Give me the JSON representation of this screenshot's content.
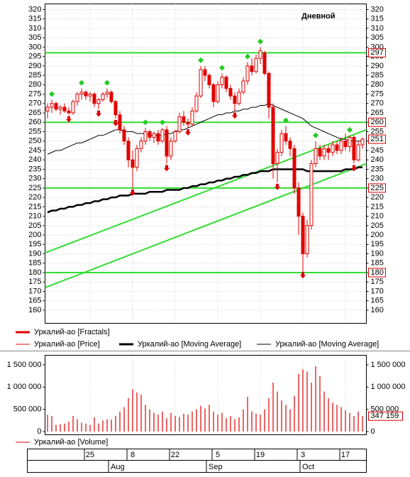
{
  "chart_data": [
    {
      "type": "candlestick",
      "title": "Дневной",
      "ylim": [
        153,
        323
      ],
      "yticks": [
        160,
        165,
        170,
        175,
        180,
        185,
        190,
        195,
        200,
        205,
        210,
        215,
        220,
        225,
        230,
        235,
        240,
        245,
        250,
        255,
        260,
        265,
        270,
        275,
        280,
        285,
        290,
        295,
        300,
        305,
        310,
        315,
        320
      ],
      "grid": true,
      "levels": [
        297,
        260,
        225,
        180
      ],
      "level_color": "#33dd33",
      "channel": [
        [
          190.5,
          256
        ],
        [
          172,
          238
        ]
      ],
      "channel_color": "#33dd33",
      "series": [
        {
          "name": "Уркалий-ао [Fractals]",
          "color": "#e00000",
          "up_color": "#22cc22",
          "up": [
            null,
            275,
            null,
            null,
            null,
            null,
            null,
            null,
            281,
            null,
            null,
            null,
            null,
            null,
            281,
            null,
            null,
            null,
            null,
            null,
            null,
            null,
            null,
            260,
            null,
            null,
            null,
            260,
            null,
            null,
            null,
            null,
            null,
            null,
            null,
            null,
            293,
            null,
            null,
            null,
            null,
            289,
            null,
            null,
            null,
            null,
            null,
            295,
            null,
            null,
            303,
            null,
            null,
            null,
            null,
            null,
            261,
            null,
            null,
            null,
            null,
            null,
            null,
            253,
            null,
            null,
            null,
            null,
            null,
            null,
            null,
            256,
            null,
            null,
            null
          ],
          "down": [
            null,
            null,
            null,
            null,
            null,
            261,
            null,
            null,
            null,
            null,
            null,
            null,
            264,
            null,
            null,
            null,
            259,
            null,
            null,
            null,
            222,
            null,
            null,
            null,
            null,
            null,
            null,
            null,
            235,
            null,
            null,
            null,
            null,
            254,
            null,
            null,
            null,
            null,
            null,
            null,
            null,
            null,
            null,
            null,
            263,
            null,
            null,
            null,
            null,
            null,
            null,
            null,
            null,
            null,
            225,
            null,
            null,
            null,
            null,
            null,
            178,
            null,
            null,
            null,
            null,
            null,
            null,
            null,
            null,
            null,
            null,
            null,
            235,
            null,
            null
          ]
        },
        {
          "name": "Уркалий-ао [Price]",
          "color": "#e00000",
          "open": [
            266,
            268,
            270,
            267,
            268,
            266,
            265,
            271,
            275,
            276,
            274,
            275,
            270,
            272,
            275,
            276,
            271,
            264,
            256,
            250,
            240,
            236,
            246,
            250,
            255,
            252,
            254,
            250,
            256,
            242,
            250,
            255,
            263,
            260,
            259,
            266,
            274,
            288,
            285,
            280,
            271,
            280,
            284,
            278,
            274,
            270,
            276,
            282,
            290,
            287,
            294,
            297,
            286,
            268,
            238,
            244,
            254,
            250,
            246,
            225,
            210,
            190,
            205,
            238,
            246,
            242,
            246,
            244,
            248,
            245,
            250,
            247,
            252,
            240,
            248
          ],
          "high": [
            270,
            272,
            271,
            269,
            270,
            268,
            272,
            276,
            278,
            277,
            276,
            276,
            273,
            276,
            278,
            277,
            272,
            266,
            258,
            252,
            245,
            248,
            252,
            257,
            256,
            255,
            256,
            257,
            258,
            252,
            256,
            265,
            266,
            262,
            268,
            276,
            290,
            290,
            286,
            281,
            282,
            286,
            285,
            280,
            276,
            278,
            284,
            292,
            294,
            296,
            300,
            298,
            287,
            270,
            246,
            256,
            258,
            252,
            248,
            228,
            212,
            208,
            240,
            250,
            248,
            248,
            248,
            250,
            250,
            252,
            254,
            253,
            253,
            250,
            252
          ],
          "low": [
            262,
            265,
            266,
            264,
            265,
            264,
            264,
            269,
            272,
            272,
            271,
            268,
            267,
            271,
            273,
            270,
            262,
            254,
            248,
            236,
            225,
            234,
            244,
            248,
            250,
            249,
            248,
            249,
            238,
            240,
            249,
            254,
            258,
            257,
            258,
            265,
            273,
            282,
            278,
            268,
            270,
            278,
            276,
            272,
            266,
            269,
            275,
            280,
            285,
            286,
            291,
            285,
            262,
            230,
            228,
            242,
            248,
            242,
            222,
            200,
            180,
            188,
            203,
            236,
            240,
            240,
            240,
            242,
            243,
            243,
            245,
            244,
            238,
            239,
            246
          ],
          "close": [
            268,
            270,
            267,
            268,
            266,
            265,
            271,
            275,
            276,
            274,
            275,
            270,
            272,
            275,
            276,
            271,
            264,
            256,
            250,
            240,
            236,
            246,
            250,
            255,
            252,
            254,
            250,
            256,
            242,
            250,
            255,
            263,
            260,
            259,
            266,
            274,
            288,
            285,
            280,
            271,
            280,
            284,
            278,
            274,
            270,
            276,
            282,
            290,
            287,
            294,
            298,
            286,
            268,
            238,
            244,
            254,
            250,
            246,
            225,
            210,
            190,
            205,
            238,
            246,
            242,
            246,
            244,
            248,
            245,
            250,
            247,
            252,
            240,
            248,
            251
          ]
        },
        {
          "name": "Уркалий-ао [Moving Average]",
          "color": "#000000",
          "width": 2.5,
          "values": [
            212,
            213,
            213,
            214,
            214,
            215,
            215,
            216,
            216,
            217,
            217,
            218,
            218,
            219,
            219,
            220,
            220,
            221,
            221,
            221,
            222,
            222,
            222,
            222,
            223,
            223,
            223,
            223,
            224,
            224,
            224,
            224,
            225,
            225,
            226,
            226,
            227,
            227,
            228,
            228,
            229,
            229,
            230,
            230,
            231,
            231,
            232,
            232,
            233,
            233,
            234,
            234,
            234,
            235,
            235,
            235,
            235,
            235,
            235,
            235,
            235,
            234,
            234,
            234,
            234,
            234,
            234,
            234,
            234,
            234,
            235,
            235,
            235,
            236,
            236
          ]
        },
        {
          "name": "Уркалий-ао [Moving Average]",
          "color": "#000000",
          "width": 1,
          "values": [
            243,
            244,
            245,
            245,
            246,
            247,
            248,
            249,
            249,
            250,
            251,
            252,
            253,
            253,
            254,
            255,
            256,
            256,
            255,
            255,
            255,
            254,
            254,
            254,
            253,
            253,
            253,
            253,
            254,
            254,
            255,
            256,
            256,
            257,
            258,
            259,
            260,
            261,
            262,
            263,
            264,
            264,
            265,
            265,
            266,
            266,
            267,
            267,
            268,
            268,
            269,
            269,
            270,
            269,
            268,
            267,
            266,
            265,
            264,
            263,
            262,
            260,
            258,
            257,
            256,
            255,
            254,
            253,
            252,
            251,
            251,
            250,
            250,
            250,
            250
          ]
        }
      ]
    },
    {
      "type": "bar",
      "ylim": [
        0,
        1675000
      ],
      "yticks": [
        0,
        {
          "value": 500000,
          "label": "500 000"
        },
        {
          "value": 1000000,
          "label": "1 000 000"
        },
        {
          "value": 1500000,
          "label": "1 500 000"
        }
      ],
      "categories": [
        null,
        null,
        null,
        null,
        null,
        null,
        null,
        null,
        null,
        null,
        "25",
        null,
        null,
        null,
        null,
        null,
        null,
        null,
        null,
        null,
        "8",
        null,
        null,
        null,
        null,
        null,
        null,
        null,
        null,
        null,
        "22",
        null,
        null,
        null,
        null,
        null,
        null,
        null,
        null,
        null,
        "5",
        null,
        null,
        null,
        null,
        null,
        null,
        null,
        null,
        null,
        "19",
        null,
        null,
        null,
        null,
        null,
        null,
        null,
        null,
        null,
        "3",
        null,
        null,
        null,
        null,
        null,
        null,
        null,
        null,
        null,
        "17",
        null,
        null,
        null,
        null
      ],
      "months": [
        null,
        null,
        null,
        null,
        null,
        null,
        null,
        null,
        null,
        null,
        null,
        null,
        null,
        null,
        null,
        "Aug",
        null,
        null,
        null,
        null,
        null,
        null,
        null,
        null,
        null,
        null,
        null,
        null,
        null,
        null,
        null,
        null,
        null,
        null,
        null,
        null,
        null,
        null,
        "Sep",
        null,
        null,
        null,
        null,
        null,
        null,
        null,
        null,
        null,
        null,
        null,
        null,
        null,
        null,
        null,
        null,
        null,
        null,
        null,
        null,
        null,
        "Oct",
        null,
        null,
        null,
        null,
        null,
        null,
        null,
        null,
        null,
        null,
        null,
        null,
        null,
        null
      ],
      "series": [
        {
          "name": "Уркалий-ао [Volume]",
          "color": "#e00000",
          "values": [
            380000,
            350000,
            150000,
            170000,
            180000,
            220000,
            350000,
            280000,
            200000,
            180000,
            150000,
            320000,
            180000,
            250000,
            280000,
            270000,
            350000,
            450000,
            550000,
            750000,
            950000,
            880000,
            830000,
            600000,
            500000,
            420000,
            380000,
            450000,
            300000,
            420000,
            350000,
            330000,
            400000,
            380000,
            450000,
            500000,
            580000,
            520000,
            600000,
            450000,
            380000,
            420000,
            300000,
            350000,
            280000,
            320000,
            500000,
            780000,
            450000,
            400000,
            380000,
            500000,
            750000,
            1100000,
            900000,
            700000,
            600000,
            500000,
            800000,
            1300000,
            1400000,
            1350000,
            1100000,
            1470000,
            1250000,
            900000,
            750000,
            650000,
            600000,
            550000,
            480000,
            420000,
            350000,
            450000,
            347159
          ],
          "value_labels": [
            null,
            null,
            null,
            null,
            null,
            null,
            null,
            null,
            null,
            null,
            null,
            null,
            null,
            null,
            null,
            null,
            null,
            null,
            null,
            null,
            null,
            null,
            null,
            null,
            null,
            null,
            null,
            null,
            null,
            null,
            null,
            null,
            null,
            null,
            null,
            null,
            null,
            null,
            null,
            null,
            null,
            null,
            null,
            null,
            null,
            null,
            null,
            null,
            null,
            null,
            null,
            null,
            null,
            null,
            null,
            null,
            null,
            null,
            null,
            null,
            null,
            null,
            null,
            null,
            null,
            null,
            null,
            null,
            null,
            null,
            null,
            null,
            null,
            null,
            "347 159"
          ]
        }
      ]
    }
  ]
}
